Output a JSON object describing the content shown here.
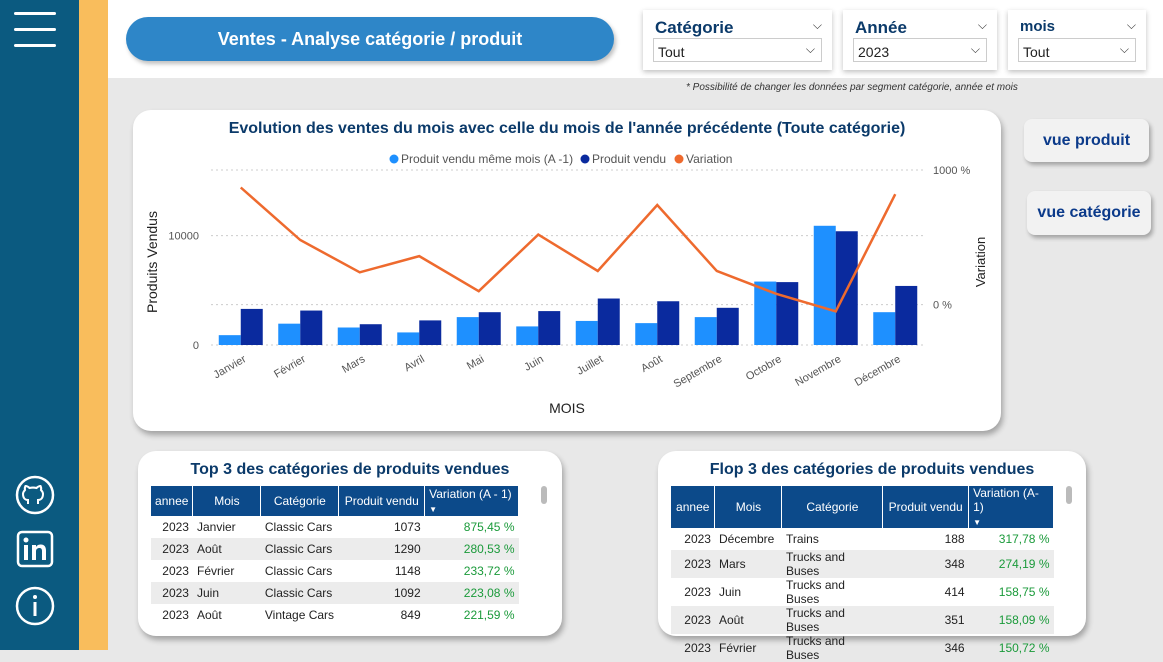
{
  "header": {
    "title": "Ventes - Analyse catégorie / produit",
    "note": "* Possibilité de changer les données par segment catégorie, année et mois"
  },
  "slicers": [
    {
      "label": "Catégorie",
      "value": "Tout"
    },
    {
      "label": "Année",
      "value": "2023"
    },
    {
      "label": "mois",
      "value": "Tout"
    }
  ],
  "buttons": {
    "produit": "vue produit",
    "categorie": "vue catégorie"
  },
  "colors": {
    "prev": "#1e90ff",
    "cur": "#0a2a9e",
    "variation": "#ee6a2e",
    "header": "#0c4a8a",
    "positive": "#1a9a3a"
  },
  "sidebar_icons": [
    "menu-icon",
    "github-icon",
    "linkedin-icon",
    "info-icon"
  ],
  "chart_data": {
    "type": "bar",
    "title": "Evolution des ventes du mois avec celle du mois de l'année précédente (Toute catégorie)",
    "xlabel": "MOIS",
    "ylabel": "Produits Vendus",
    "y2label": "Variation",
    "yticks": [
      "0",
      "10000"
    ],
    "y2ticks": [
      "0 %",
      "1000 %"
    ],
    "ylim": [
      0,
      16000
    ],
    "y2lim": [
      -300,
      1000
    ],
    "legend_position": "top",
    "categories": [
      "Janvier",
      "Février",
      "Mars",
      "Avril",
      "Mai",
      "Juin",
      "Juillet",
      "Août",
      "Septembre",
      "Octobre",
      "Novembre",
      "Décembre"
    ],
    "series": [
      {
        "name": "Produit vendu même mois (A -1)",
        "type": "bar",
        "values": [
          900,
          1950,
          1600,
          1150,
          2550,
          1700,
          2200,
          2000,
          2550,
          5800,
          10900,
          3000
        ]
      },
      {
        "name": "Produit vendu",
        "type": "bar",
        "values": [
          3300,
          3150,
          1900,
          2250,
          3000,
          3100,
          4250,
          4000,
          3400,
          5750,
          10400,
          5400
        ]
      },
      {
        "name": "Variation",
        "type": "line",
        "axis": "secondary",
        "values": [
          870,
          480,
          240,
          360,
          100,
          520,
          250,
          740,
          250,
          80,
          -50,
          820
        ]
      }
    ]
  },
  "top_table": {
    "title": "Top 3 des catégories de produits vendues",
    "headers": [
      "annee",
      "Mois",
      "Catégorie",
      "Produit vendu",
      "Variation (A - 1)"
    ],
    "rows": [
      [
        "2023",
        "Janvier",
        "Classic Cars",
        "1073",
        "875,45 %"
      ],
      [
        "2023",
        "Août",
        "Classic Cars",
        "1290",
        "280,53 %"
      ],
      [
        "2023",
        "Février",
        "Classic Cars",
        "1148",
        "233,72 %"
      ],
      [
        "2023",
        "Juin",
        "Classic Cars",
        "1092",
        "223,08 %"
      ],
      [
        "2023",
        "Août",
        "Vintage Cars",
        "849",
        "221,59 %"
      ]
    ]
  },
  "flop_table": {
    "title": "Flop 3 des catégories de produits vendues",
    "headers": [
      "annee",
      "Mois",
      "Catégorie",
      "Produit vendu",
      "Variation (A-1)"
    ],
    "rows": [
      [
        "2023",
        "Décembre",
        "Trains",
        "188",
        "317,78 %"
      ],
      [
        "2023",
        "Mars",
        "Trucks and Buses",
        "348",
        "274,19 %"
      ],
      [
        "2023",
        "Juin",
        "Trucks and Buses",
        "414",
        "158,75 %"
      ],
      [
        "2023",
        "Août",
        "Trucks and Buses",
        "351",
        "158,09 %"
      ],
      [
        "2023",
        "Février",
        "Trucks and Buses",
        "346",
        "150,72 %"
      ]
    ]
  }
}
